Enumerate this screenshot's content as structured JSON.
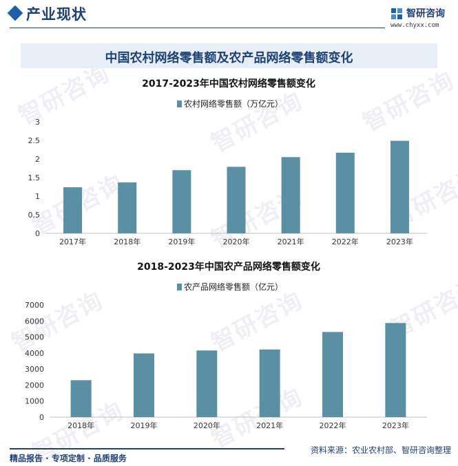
{
  "header": {
    "title": "产业现状",
    "logo_name": "智研咨询",
    "logo_url": "www.chyxx.com"
  },
  "banner": {
    "title": "中国农村网络零售额及农产品网络零售额变化"
  },
  "chart_data": [
    {
      "type": "bar",
      "title": "2017-2023年中国农村网络零售额变化",
      "legend": "农村网络零售额（万亿元）",
      "categories": [
        "2017年",
        "2018年",
        "2019年",
        "2020年",
        "2021年",
        "2022年",
        "2023年"
      ],
      "values": [
        1.24,
        1.37,
        1.7,
        1.79,
        2.05,
        2.17,
        2.49
      ],
      "ylim": [
        0,
        3
      ],
      "yticks": [
        "0",
        "0.5",
        "1",
        "1.5",
        "2",
        "2.5",
        "3"
      ],
      "color": "#5b8fa3"
    },
    {
      "type": "bar",
      "title": "2018-2023年中国农产品网络零售额变化",
      "legend": "农产品网络零售额（亿元）",
      "categories": [
        "2018年",
        "2019年",
        "2020年",
        "2021年",
        "2022年",
        "2023年"
      ],
      "values": [
        2305,
        3975,
        4159,
        4221,
        5313,
        5870
      ],
      "ylim": [
        0,
        7000
      ],
      "yticks": [
        "0",
        "1000",
        "2000",
        "3000",
        "4000",
        "5000",
        "6000",
        "7000"
      ],
      "color": "#5b8fa3"
    }
  ],
  "footer": {
    "left": "精品报告 · 专项定制 · 品质服务",
    "right": "资料来源：农业农村部、智研咨询整理"
  },
  "watermark": {
    "text": "智研咨询"
  }
}
